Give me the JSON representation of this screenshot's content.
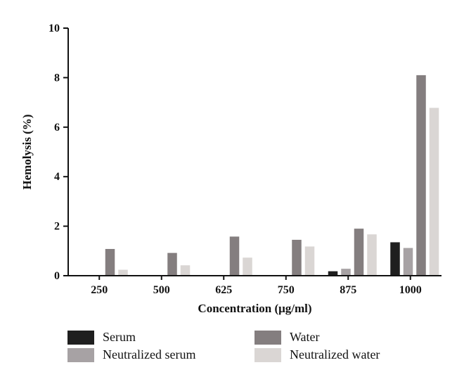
{
  "chart_data": {
    "type": "bar",
    "categories": [
      "250",
      "500",
      "625",
      "750",
      "875",
      "1000"
    ],
    "series": [
      {
        "name": "Serum",
        "color": "#1f1f1f",
        "values": [
          0,
          0,
          0,
          0,
          0.18,
          1.35
        ]
      },
      {
        "name": "Neutralized serum",
        "color": "#a7a2a4",
        "values": [
          0,
          0,
          0,
          0,
          0.28,
          1.12
        ]
      },
      {
        "name": "Water",
        "color": "#847e7f",
        "values": [
          1.08,
          0.92,
          1.58,
          1.45,
          1.9,
          8.1
        ]
      },
      {
        "name": "Neutralized water",
        "color": "#dad6d4",
        "values": [
          0.24,
          0.42,
          0.73,
          1.18,
          1.67,
          6.78
        ]
      }
    ],
    "xlabel": "Concentration (μg/ml)",
    "ylabel": "Hemolysis (%)",
    "ylim": [
      0,
      10
    ],
    "yticks": [
      "0",
      "2",
      "4",
      "6",
      "8",
      "10"
    ],
    "grid": false,
    "legend_position": "bottom"
  }
}
